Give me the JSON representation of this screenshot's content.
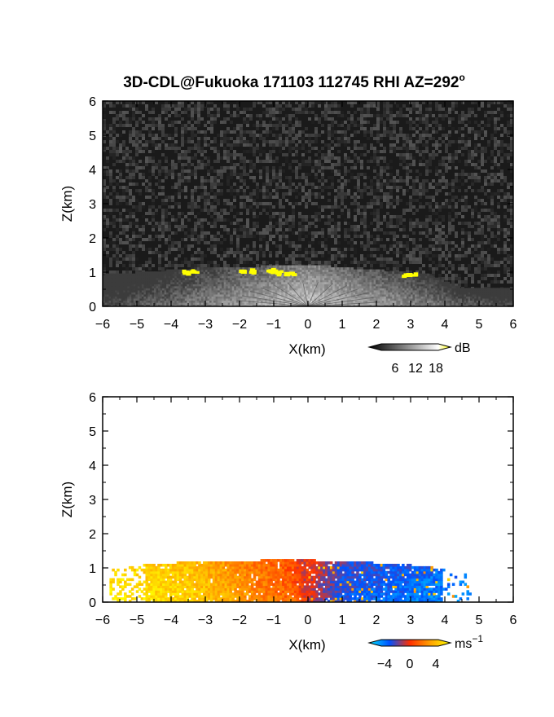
{
  "figure": {
    "title": "3D-CDL@Fukuoka 171103 112745 RHI AZ=292",
    "title_degree": "o"
  },
  "chart_data": [
    {
      "type": "heatmap",
      "panel": "top",
      "quantity": "SNR",
      "xlabel": "X(km)",
      "ylabel": "Z(km)",
      "xlim": [
        -6,
        6
      ],
      "ylim": [
        0,
        6
      ],
      "x_ticks": [
        -6,
        -5,
        -4,
        -3,
        -2,
        -1,
        0,
        1,
        2,
        3,
        4,
        5,
        6
      ],
      "y_ticks": [
        0,
        1,
        2,
        3,
        4,
        5,
        6
      ],
      "background": "#1a1a1a",
      "echo_top_km": [
        [
          -6,
          0.9
        ],
        [
          -4.5,
          1.0
        ],
        [
          -3,
          1.1
        ],
        [
          -1,
          1.15
        ],
        [
          0,
          1.2
        ],
        [
          1,
          1.1
        ],
        [
          2.5,
          1.0
        ],
        [
          3.5,
          0.9
        ],
        [
          4.5,
          0.5
        ]
      ],
      "high_snr_patches": [
        [
          -3.6,
          1.05
        ],
        [
          -3.4,
          1.05
        ],
        [
          -1.9,
          1.1
        ],
        [
          -1.6,
          1.08
        ],
        [
          -1.2,
          1.1
        ],
        [
          -0.9,
          1.05
        ],
        [
          -0.6,
          1.0
        ],
        [
          2.8,
          0.95
        ],
        [
          3.0,
          0.97
        ]
      ],
      "colorbar": {
        "unit": "dB",
        "ticks": [
          "6",
          "12",
          "18"
        ],
        "range": [
          0,
          21
        ],
        "colors": [
          "#000000",
          "#ffffff",
          "#ffff00"
        ]
      }
    },
    {
      "type": "heatmap",
      "panel": "bottom",
      "quantity": "radial velocity",
      "xlabel": "X(km)",
      "ylabel": "Z(km)",
      "xlim": [
        -6,
        6
      ],
      "ylim": [
        0,
        6
      ],
      "x_ticks": [
        -6,
        -5,
        -4,
        -3,
        -2,
        -1,
        0,
        1,
        2,
        3,
        4,
        5,
        6
      ],
      "y_ticks": [
        0,
        1,
        2,
        3,
        4,
        5,
        6
      ],
      "velocity_profile": {
        "x_km": [
          -5.5,
          -4.5,
          -3.5,
          -2.5,
          -1.5,
          -0.5,
          0.2,
          1.0,
          2.0,
          3.0,
          3.8
        ],
        "v_ms": [
          4.5,
          4.2,
          3.8,
          3.0,
          2.0,
          1.2,
          -1.0,
          -2.5,
          -2.8,
          -3.2,
          -3.5
        ]
      },
      "data_top_km": [
        [
          -5.5,
          0.95
        ],
        [
          -4.5,
          1.1
        ],
        [
          -3,
          1.15
        ],
        [
          -1,
          1.2
        ],
        [
          0,
          1.2
        ],
        [
          1,
          1.15
        ],
        [
          2.5,
          1.1
        ],
        [
          3.5,
          1.0
        ],
        [
          4.6,
          0.8
        ]
      ],
      "colorbar": {
        "unit": "ms",
        "unit_exp": "−1",
        "ticks": [
          "−4",
          "0",
          "4"
        ],
        "range": [
          -5,
          5
        ],
        "colors": [
          "#00e5ff",
          "#0050ff",
          "#ff3000",
          "#ffa000",
          "#ffff00"
        ]
      }
    }
  ]
}
